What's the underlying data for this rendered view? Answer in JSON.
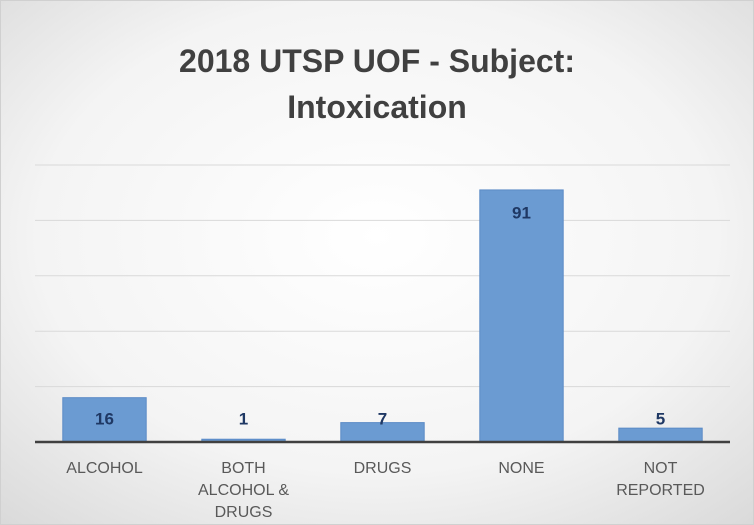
{
  "chart_data": {
    "type": "bar",
    "title": "2018 UTSP UOF - Subject: Intoxication",
    "categories": [
      "ALCOHOL",
      "BOTH ALCOHOL & DRUGS",
      "DRUGS",
      "NONE",
      "NOT REPORTED"
    ],
    "values": [
      16,
      1,
      7,
      91,
      5
    ],
    "color": "#6b9bd2",
    "ylim": [
      0,
      100
    ],
    "yticks": [
      0,
      20,
      40,
      60,
      80,
      100
    ],
    "grid": true
  }
}
